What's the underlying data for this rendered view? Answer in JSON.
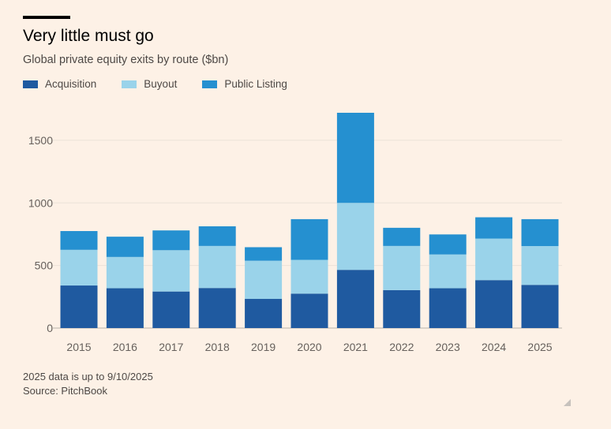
{
  "chart_data": {
    "type": "bar",
    "stacked": true,
    "title": "Very little must go",
    "subtitle": "Global private equity exits by route ($bn)",
    "categories": [
      "2015",
      "2016",
      "2017",
      "2018",
      "2019",
      "2020",
      "2021",
      "2022",
      "2023",
      "2024",
      "2025"
    ],
    "series": [
      {
        "name": "Acquisition",
        "color": "#1f5aa0",
        "values": [
          340,
          318,
          292,
          320,
          233,
          275,
          465,
          303,
          318,
          383,
          345
        ]
      },
      {
        "name": "Buyout",
        "color": "#9ad3ea",
        "values": [
          285,
          250,
          330,
          336,
          305,
          270,
          535,
          353,
          270,
          332,
          310
        ]
      },
      {
        "name": "Public Listing",
        "color": "#2590d0",
        "values": [
          150,
          162,
          158,
          157,
          108,
          325,
          720,
          145,
          160,
          170,
          215
        ]
      }
    ],
    "yticks": [
      0,
      500,
      1000,
      1500
    ],
    "ylim": [
      0,
      1720
    ],
    "xlabel": "",
    "ylabel": "",
    "grid": true
  },
  "footer": {
    "note": "2025 data is up to 9/10/2025",
    "source": "Source: PitchBook"
  }
}
